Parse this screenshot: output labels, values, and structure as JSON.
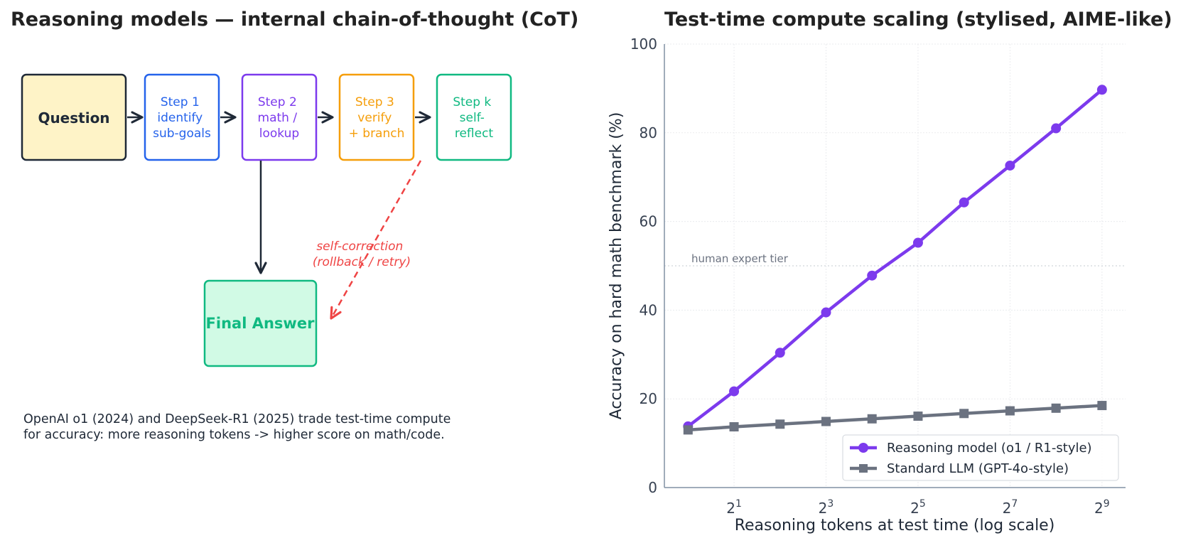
{
  "left": {
    "title": "Reasoning models — internal chain-of-thought (CoT)",
    "question": "Question",
    "steps": [
      {
        "lines": [
          "Step 1",
          "identify",
          "sub-goals"
        ],
        "color": "#2563eb"
      },
      {
        "lines": [
          "Step 2",
          "math /",
          "lookup"
        ],
        "color": "#7c3aed"
      },
      {
        "lines": [
          "Step 3",
          "verify",
          "+ branch"
        ],
        "color": "#f59e0b"
      },
      {
        "lines": [
          "Step k",
          "self-",
          "reflect"
        ],
        "color": "#10b981"
      }
    ],
    "final_answer": "Final Answer",
    "self_correction": [
      "self-correction",
      "(rollback / retry)"
    ],
    "caption": [
      "OpenAI o1 (2024) and DeepSeek-R1 (2025) trade test-time compute",
      "for accuracy: more reasoning tokens -> higher score on math/code."
    ],
    "colors": {
      "question_fill": "#fef3c7",
      "question_stroke": "#1f2937",
      "final_fill": "#d1fae5",
      "final_stroke": "#10b981",
      "correction": "#ef4444",
      "arrow": "#1f2937"
    }
  },
  "chart_data": {
    "type": "line",
    "title": "Test-time compute scaling (stylised, AIME-like)",
    "xlabel": "Reasoning tokens at test time (log scale)",
    "ylabel": "Accuracy on hard math benchmark (%)",
    "x_scale": "log2",
    "x": [
      1,
      2,
      4,
      8,
      16,
      32,
      64,
      128,
      256,
      512
    ],
    "xlim": [
      0.7,
      730
    ],
    "ylim": [
      0,
      100
    ],
    "xticks": [
      {
        "value": 2,
        "base": "2",
        "exp": "1"
      },
      {
        "value": 8,
        "base": "2",
        "exp": "3"
      },
      {
        "value": 32,
        "base": "2",
        "exp": "5"
      },
      {
        "value": 128,
        "base": "2",
        "exp": "7"
      },
      {
        "value": 512,
        "base": "2",
        "exp": "9"
      }
    ],
    "yticks": [
      0,
      20,
      40,
      60,
      80,
      100
    ],
    "grid": true,
    "series": [
      {
        "name": "Reasoning model (o1 / R1-style)",
        "marker": "circle",
        "color": "#7c3aed",
        "values": [
          13.8,
          21.7,
          30.4,
          39.5,
          47.8,
          55.2,
          64.3,
          72.6,
          81.0,
          89.7
        ]
      },
      {
        "name": "Standard LLM (GPT-4o-style)",
        "marker": "square",
        "color": "#6b7280",
        "values": [
          13.0,
          13.7,
          14.3,
          14.9,
          15.5,
          16.1,
          16.7,
          17.3,
          17.9,
          18.5
        ]
      }
    ],
    "reference_line": {
      "y": 50,
      "label": "human expert tier"
    },
    "legend_position": "lower-right"
  }
}
